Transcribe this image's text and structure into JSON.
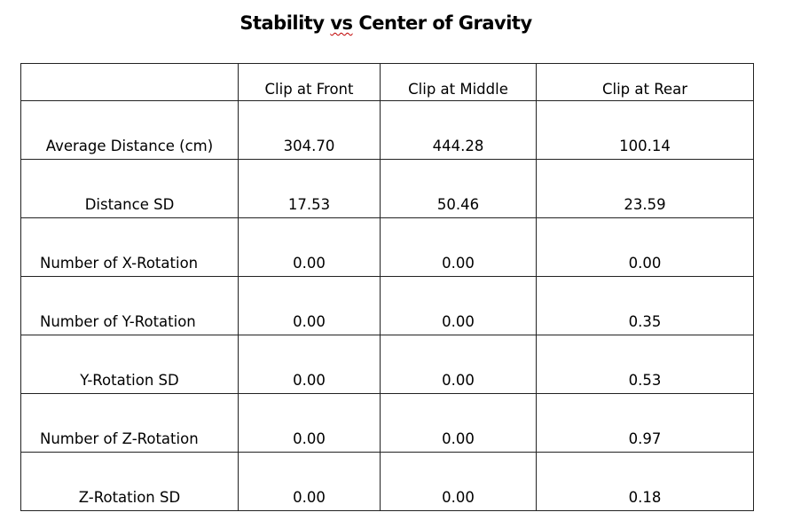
{
  "title_parts": {
    "before": "Stability ",
    "squiggle": "vs",
    "after": " Center of Gravity"
  },
  "table": {
    "columns": [
      "",
      "Clip at Front",
      "Clip at Middle",
      "Clip at Rear"
    ],
    "rows": [
      {
        "label": "Average Distance (cm)",
        "values": [
          "304.70",
          "444.28",
          "100.14"
        ]
      },
      {
        "label": "Distance SD",
        "values": [
          "17.53",
          "50.46",
          "23.59"
        ]
      },
      {
        "label": "Number of X-Rotation",
        "values": [
          "0.00",
          "0.00",
          "0.00"
        ]
      },
      {
        "label": "Number of Y-Rotation",
        "values": [
          "0.00",
          "0.00",
          "0.35"
        ]
      },
      {
        "label": "Y-Rotation SD",
        "values": [
          "0.00",
          "0.00",
          "0.53"
        ]
      },
      {
        "label": "Number of Z-Rotation",
        "values": [
          "0.00",
          "0.00",
          "0.97"
        ]
      },
      {
        "label": "Z-Rotation SD",
        "values": [
          "0.00",
          "0.00",
          "0.18"
        ]
      }
    ]
  }
}
